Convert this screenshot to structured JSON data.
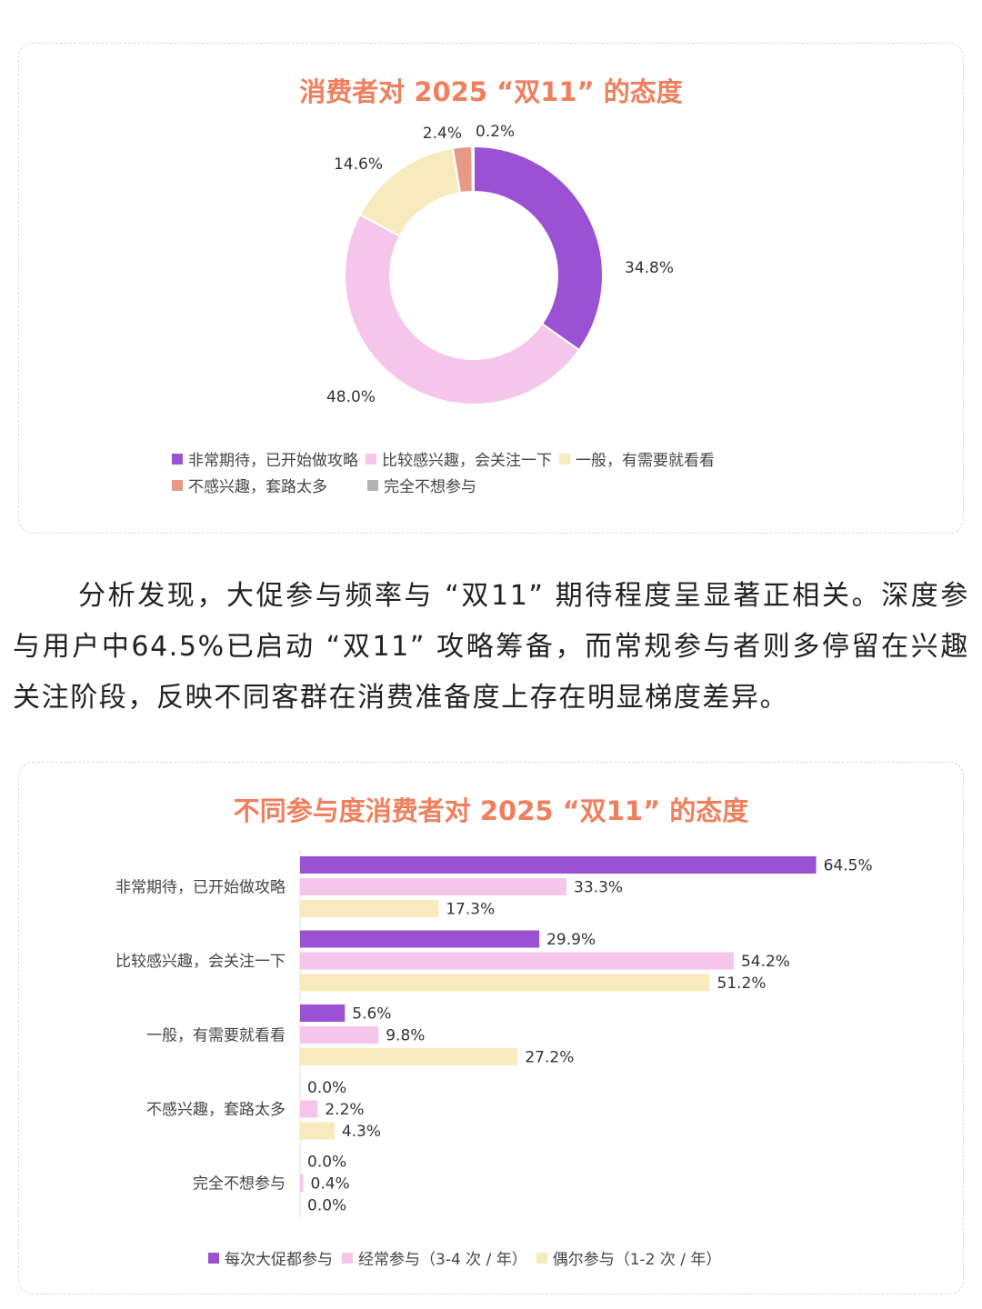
{
  "donut_chart": {
    "title": "消费者对 2025 “双11” 的态度",
    "legend": [
      "非常期待，已开始做攻略",
      "比较感兴趣，会关注一下",
      "一般，有需要就看看",
      "不感兴趣，套路太多",
      "完全不想参与"
    ]
  },
  "paragraph": {
    "text": "分析发现，大促参与频率与 “双11” 期待程度呈显著正相关。深度参与用户中64.5%已启动 “双11” 攻略筹备，而常规参与者则多停留在兴趣关注阶段，反映不同客群在消费准备度上存在明显梯度差异。"
  },
  "bar_chart": {
    "title": "不同参与度消费者对 2025 “双11” 的态度",
    "legend": [
      "每次大促都参与",
      "经常参与（3-4 次 / 年）",
      "偶尔参与（1-2 次 / 年）"
    ]
  },
  "chart_data": [
    {
      "type": "pie",
      "title": "消费者对 2025 “双11” 的态度",
      "categories": [
        "非常期待，已开始做攻略",
        "比较感兴趣，会关注一下",
        "一般，有需要就看看",
        "不感兴趣，套路太多",
        "完全不想参与"
      ],
      "values": [
        34.8,
        48.0,
        14.6,
        2.4,
        0.2
      ],
      "labels": [
        "34.8%",
        "48.0%",
        "14.6%",
        "2.4%",
        "0.2%"
      ],
      "colors": [
        "#9b51d3",
        "#f5c6ea",
        "#f7ebbd",
        "#e69a86",
        "#b3b3b3"
      ],
      "legend_position": "bottom"
    },
    {
      "type": "bar",
      "orientation": "horizontal",
      "title": "不同参与度消费者对 2025 “双11” 的态度",
      "categories": [
        "非常期待，已开始做攻略",
        "比较感兴趣，会关注一下",
        "一般，有需要就看看",
        "不感兴趣，套路太多",
        "完全不想参与"
      ],
      "series": [
        {
          "name": "每次大促都参与",
          "color": "#9b51d3",
          "values": [
            64.5,
            29.9,
            5.6,
            0.0,
            0.0
          ],
          "labels": [
            "64.5%",
            "29.9%",
            "5.6%",
            "0.0%",
            "0.0%"
          ]
        },
        {
          "name": "经常参与（3-4 次 / 年）",
          "color": "#f5c6ea",
          "values": [
            33.3,
            54.2,
            9.8,
            2.2,
            0.4
          ],
          "labels": [
            "33.3%",
            "54.2%",
            "9.8%",
            "2.2%",
            "0.4%"
          ]
        },
        {
          "name": "偶尔参与（1-2 次 / 年）",
          "color": "#f7ebbd",
          "values": [
            17.3,
            51.2,
            27.2,
            4.3,
            0.0
          ],
          "labels": [
            "17.3%",
            "51.2%",
            "27.2%",
            "4.3%",
            "0.0%"
          ]
        }
      ],
      "xlim": [
        0,
        70
      ],
      "grid": false,
      "legend_position": "bottom"
    }
  ]
}
